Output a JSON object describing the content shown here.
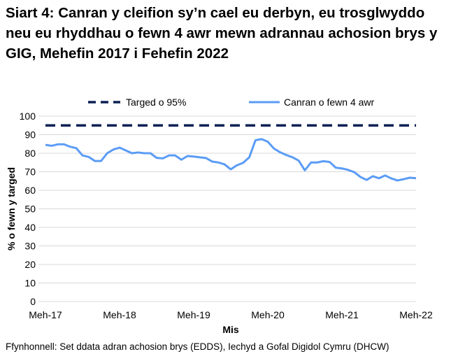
{
  "chart_data": {
    "type": "line",
    "title": "Siart 4: Canran y cleifion sy’n cael eu derbyn, eu trosglwyddo neu eu rhyddhau o fewn 4 awr mewn adrannau achosion brys y GIG, Mehefin 2017 i Fehefin 2022",
    "xlabel": "Mis",
    "ylabel": "% o fewn y targed",
    "ylim": [
      0,
      100
    ],
    "yticks": [
      0,
      10,
      20,
      30,
      40,
      50,
      60,
      70,
      80,
      90,
      100
    ],
    "xtick_labels": [
      "Meh-17",
      "Meh-18",
      "Meh-19",
      "Meh-20",
      "Meh-21",
      "Meh-22"
    ],
    "grid": true,
    "legend_position": "top",
    "series": [
      {
        "name": "Targed o 95%",
        "color": "#0c2054",
        "style": "dashed",
        "constant": 95
      },
      {
        "name": "Canran o fewn 4 awr",
        "color": "#5b9cf6",
        "style": "solid",
        "values": [
          84.5,
          84,
          84.8,
          84.8,
          83.5,
          82.7,
          78.8,
          78,
          75.8,
          75.8,
          80,
          82,
          83,
          81.5,
          80,
          80.4,
          80,
          80,
          77.5,
          77.2,
          78.8,
          78.8,
          76.5,
          78.5,
          78.2,
          77.8,
          77.4,
          75.5,
          75,
          74,
          71.3,
          73.5,
          74.8,
          77.8,
          87,
          87.6,
          86.2,
          82.5,
          80.5,
          79,
          77.8,
          76,
          70.8,
          75,
          75,
          75.7,
          75.3,
          72.2,
          71.8,
          71,
          69.8,
          67.2,
          65.6,
          67.6,
          66.5,
          68,
          66.4,
          65.3,
          66,
          66.8,
          66.5
        ]
      }
    ]
  },
  "source": "Ffynhonnell: Set ddata adran achosion brys (EDDS), Iechyd a Gofal Digidol Cymru (DHCW)"
}
